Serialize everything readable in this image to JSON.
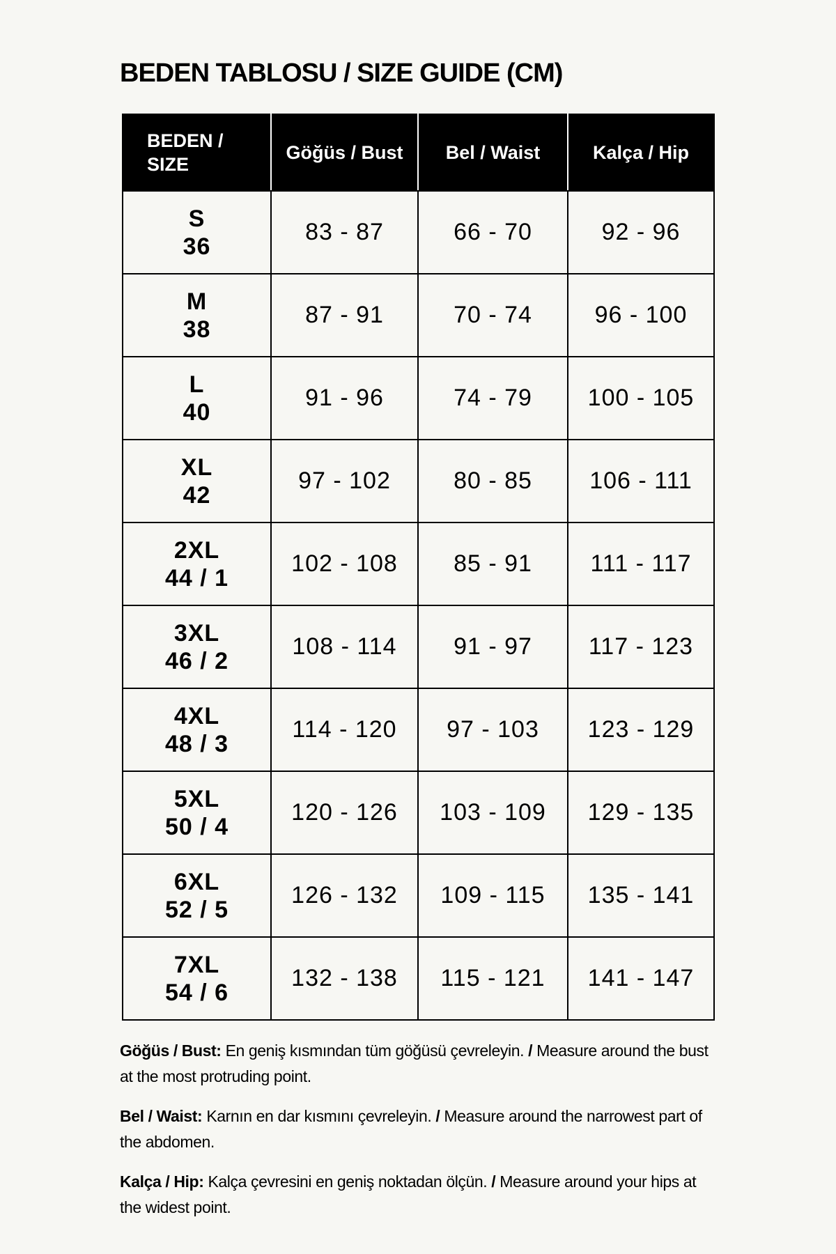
{
  "title": "BEDEN TABLOSU / SIZE GUIDE (CM)",
  "table": {
    "headers": [
      "BEDEN / SIZE",
      "Göğüs / Bust",
      "Bel / Waist",
      "Kalça / Hip"
    ],
    "header_size_line1": "BEDEN /",
    "header_size_line2": "SIZE",
    "rows": [
      {
        "size": "S",
        "num": "36",
        "bust": "83 - 87",
        "waist": "66 - 70",
        "hip": "92 - 96"
      },
      {
        "size": "M",
        "num": "38",
        "bust": "87 - 91",
        "waist": "70 - 74",
        "hip": "96 - 100"
      },
      {
        "size": "L",
        "num": "40",
        "bust": "91 - 96",
        "waist": "74 - 79",
        "hip": "100 - 105"
      },
      {
        "size": "XL",
        "num": "42",
        "bust": "97 - 102",
        "waist": "80 - 85",
        "hip": "106 - 111"
      },
      {
        "size": "2XL",
        "num": "44 / 1",
        "bust": "102 - 108",
        "waist": "85 - 91",
        "hip": "111 - 117"
      },
      {
        "size": "3XL",
        "num": "46 / 2",
        "bust": "108 - 114",
        "waist": "91 - 97",
        "hip": "117 - 123"
      },
      {
        "size": "4XL",
        "num": "48 / 3",
        "bust": "114 - 120",
        "waist": "97 - 103",
        "hip": "123 - 129"
      },
      {
        "size": "5XL",
        "num": "50 / 4",
        "bust": "120 - 126",
        "waist": "103 - 109",
        "hip": "129 - 135"
      },
      {
        "size": "6XL",
        "num": "52 / 5",
        "bust": "126 - 132",
        "waist": "109 - 115",
        "hip": "135 - 141"
      },
      {
        "size": "7XL",
        "num": "54 / 6",
        "bust": "132 - 138",
        "waist": "115 - 121",
        "hip": "141 - 147"
      }
    ]
  },
  "notes": [
    {
      "label": "Göğüs / Bust:",
      "tr": "En geniş kısmından tüm göğüsü çevreleyin.",
      "sep": "/",
      "en": "Measure around the bust at the most protruding point."
    },
    {
      "label": "Bel / Waist:",
      "tr": "Karnın en dar kısmını çevreleyin.",
      "sep": "/",
      "en": "Measure around the narrowest part of the abdomen."
    },
    {
      "label": "Kalça / Hip:",
      "tr": "Kalça çevresini en geniş noktadan ölçün.",
      "sep": "/",
      "en": "Measure around your hips at the widest point."
    }
  ]
}
